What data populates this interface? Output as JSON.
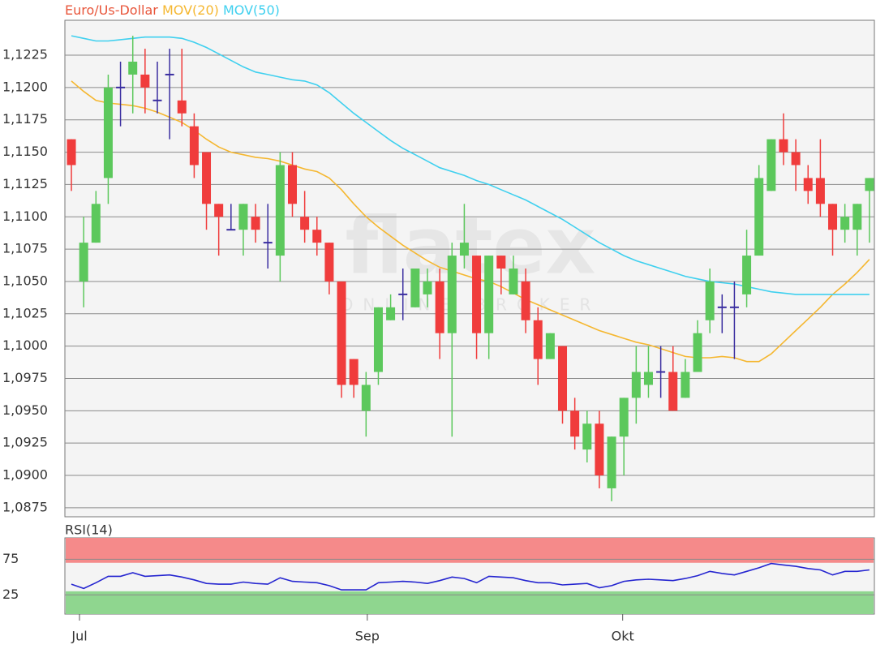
{
  "watermark": {
    "text": "flatex",
    "subtext": "ONLINE BROKER"
  },
  "chart_data": [
    {
      "type": "candlestick",
      "title": "Euro/Us-Dollar",
      "title_color": "#e8553a",
      "up_color": "#5cc85c",
      "down_color": "#f03c3c",
      "doji_color": "#3a2ea0",
      "categories": [
        null,
        null,
        null,
        null,
        null,
        null,
        null,
        null,
        null,
        null,
        null,
        null,
        null,
        null,
        null,
        null,
        null,
        null,
        null,
        null,
        null,
        null,
        null,
        null,
        null,
        null,
        null,
        null,
        null,
        null,
        null,
        null,
        null,
        null,
        null,
        null,
        null,
        null,
        null,
        null,
        null,
        null,
        null,
        null,
        null,
        null,
        null,
        null,
        null,
        null,
        null,
        null,
        null,
        null,
        null,
        null,
        null,
        null,
        null,
        null,
        null,
        null,
        null,
        null,
        null,
        null
      ],
      "open": [
        1.116,
        1.105,
        1.108,
        1.113,
        1.12,
        1.121,
        1.121,
        1.119,
        1.121,
        1.119,
        1.117,
        1.115,
        1.111,
        1.109,
        1.109,
        1.11,
        1.108,
        1.107,
        1.114,
        1.11,
        1.109,
        1.108,
        1.105,
        1.099,
        1.095,
        1.098,
        1.102,
        1.104,
        1.103,
        1.104,
        1.105,
        1.101,
        1.107,
        1.107,
        1.101,
        1.107,
        1.104,
        1.105,
        1.102,
        1.099,
        1.1,
        1.095,
        1.092,
        1.094,
        1.089,
        1.093,
        1.096,
        1.097,
        1.098,
        1.098,
        1.096,
        1.098,
        1.102,
        1.103,
        1.103,
        1.104,
        1.107,
        1.112,
        1.116,
        1.115,
        1.113,
        1.113,
        1.111,
        1.109,
        1.109,
        1.112
      ],
      "high": [
        1.116,
        1.11,
        1.112,
        1.121,
        1.122,
        1.124,
        1.123,
        1.122,
        1.123,
        1.123,
        1.118,
        1.115,
        1.111,
        1.111,
        1.111,
        1.111,
        1.111,
        1.115,
        1.115,
        1.112,
        1.11,
        1.108,
        1.105,
        1.099,
        1.098,
        1.103,
        1.104,
        1.106,
        1.106,
        1.106,
        1.106,
        1.108,
        1.111,
        1.107,
        1.107,
        1.107,
        1.107,
        1.106,
        1.103,
        1.101,
        1.1,
        1.096,
        1.095,
        1.095,
        1.093,
        1.096,
        1.1,
        1.1,
        1.1,
        1.1,
        1.099,
        1.102,
        1.106,
        1.104,
        1.105,
        1.109,
        1.114,
        1.116,
        1.118,
        1.116,
        1.114,
        1.116,
        1.111,
        1.111,
        1.111,
        1.113
      ],
      "low": [
        1.112,
        1.103,
        1.108,
        1.111,
        1.117,
        1.118,
        1.118,
        1.118,
        1.116,
        1.117,
        1.113,
        1.109,
        1.107,
        1.109,
        1.107,
        1.108,
        1.106,
        1.105,
        1.11,
        1.108,
        1.107,
        1.104,
        1.096,
        1.096,
        1.093,
        1.097,
        1.102,
        1.102,
        1.103,
        1.103,
        1.099,
        1.093,
        1.106,
        1.099,
        1.099,
        1.104,
        1.104,
        1.101,
        1.097,
        1.099,
        1.094,
        1.092,
        1.091,
        1.089,
        1.088,
        1.09,
        1.094,
        1.096,
        1.096,
        1.095,
        1.096,
        1.098,
        1.101,
        1.101,
        1.099,
        1.103,
        1.107,
        1.112,
        1.114,
        1.112,
        1.111,
        1.11,
        1.107,
        1.108,
        1.107,
        1.108
      ],
      "close": [
        1.114,
        1.108,
        1.111,
        1.12,
        1.12,
        1.122,
        1.12,
        1.119,
        1.121,
        1.118,
        1.114,
        1.111,
        1.11,
        1.109,
        1.111,
        1.109,
        1.108,
        1.114,
        1.111,
        1.109,
        1.108,
        1.105,
        1.097,
        1.097,
        1.097,
        1.103,
        1.103,
        1.104,
        1.106,
        1.105,
        1.101,
        1.107,
        1.108,
        1.101,
        1.107,
        1.106,
        1.106,
        1.102,
        1.099,
        1.101,
        1.095,
        1.093,
        1.094,
        1.09,
        1.093,
        1.096,
        1.098,
        1.098,
        1.098,
        1.095,
        1.098,
        1.101,
        1.105,
        1.103,
        1.103,
        1.107,
        1.113,
        1.116,
        1.115,
        1.114,
        1.112,
        1.111,
        1.109,
        1.11,
        1.111,
        1.113
      ],
      "series": [
        {
          "name": "MOV(20)",
          "color": "#f5b730",
          "values": [
            1.1205,
            1.1197,
            1.119,
            1.1188,
            1.1187,
            1.1186,
            1.1184,
            1.1181,
            1.1177,
            1.1173,
            1.1167,
            1.116,
            1.1154,
            1.115,
            1.1148,
            1.1146,
            1.1145,
            1.1143,
            1.114,
            1.1137,
            1.1135,
            1.113,
            1.1121,
            1.111,
            1.11,
            1.1092,
            1.1085,
            1.1078,
            1.1072,
            1.1066,
            1.1061,
            1.1058,
            1.1055,
            1.1052,
            1.105,
            1.1046,
            1.1041,
            1.1036,
            1.1032,
            1.1028,
            1.1024,
            1.102,
            1.1016,
            1.1012,
            1.1009,
            1.1006,
            1.1003,
            1.1001,
            1.0998,
            1.0995,
            1.0992,
            1.0991,
            1.0991,
            1.0992,
            1.0991,
            1.0988,
            1.0988,
            1.0994,
            1.1003,
            1.1012,
            1.1021,
            1.103,
            1.104,
            1.1048,
            1.1057,
            1.1067
          ]
        },
        {
          "name": "MOV(50)",
          "color": "#3fd0ef",
          "values": [
            1.124,
            1.1238,
            1.1236,
            1.1236,
            1.1237,
            1.1238,
            1.1239,
            1.1239,
            1.1239,
            1.1238,
            1.1235,
            1.1231,
            1.1226,
            1.1221,
            1.1216,
            1.1212,
            1.121,
            1.1208,
            1.1206,
            1.1205,
            1.1202,
            1.1196,
            1.1188,
            1.118,
            1.1173,
            1.1166,
            1.1159,
            1.1153,
            1.1148,
            1.1143,
            1.1138,
            1.1135,
            1.1132,
            1.1128,
            1.1125,
            1.1121,
            1.1117,
            1.1113,
            1.1108,
            1.1103,
            1.1098,
            1.1092,
            1.1086,
            1.108,
            1.1075,
            1.107,
            1.1066,
            1.1063,
            1.106,
            1.1057,
            1.1054,
            1.1052,
            1.105,
            1.1049,
            1.1048,
            1.1046,
            1.1044,
            1.1042,
            1.1041,
            1.104,
            1.104,
            1.104,
            1.104,
            1.104,
            1.104,
            1.104
          ]
        }
      ],
      "xlim": [
        -0.53,
        65.4
      ],
      "ylim": [
        1.0868,
        1.1252
      ],
      "yticks": [
        {
          "value": 1.0875,
          "label": "1,0875"
        },
        {
          "value": 1.09,
          "label": "1,0900"
        },
        {
          "value": 1.0925,
          "label": "1,0925"
        },
        {
          "value": 1.095,
          "label": "1,0950"
        },
        {
          "value": 1.0975,
          "label": "1,0975"
        },
        {
          "value": 1.1,
          "label": "1,1000"
        },
        {
          "value": 1.1025,
          "label": "1,1025"
        },
        {
          "value": 1.105,
          "label": "1,1050"
        },
        {
          "value": 1.1075,
          "label": "1,1075"
        },
        {
          "value": 1.11,
          "label": "1,1100"
        },
        {
          "value": 1.1125,
          "label": "1,1125"
        },
        {
          "value": 1.115,
          "label": "1,1150"
        },
        {
          "value": 1.1175,
          "label": "1,1175"
        },
        {
          "value": 1.12,
          "label": "1,1200"
        },
        {
          "value": 1.1225,
          "label": "1,1225"
        }
      ],
      "grid": true
    },
    {
      "type": "line",
      "title": "RSI(14)",
      "title_color": "#1a1aff",
      "categories": [
        null,
        null,
        null,
        null,
        null,
        null,
        null,
        null,
        null,
        null,
        null,
        null,
        null,
        null,
        null,
        null,
        null,
        null,
        null,
        null,
        null,
        null,
        null,
        null,
        null,
        null,
        null,
        null,
        null,
        null,
        null,
        null,
        null,
        null,
        null,
        null,
        null,
        null,
        null,
        null,
        null,
        null,
        null,
        null,
        null,
        null,
        null,
        null,
        null,
        null,
        null,
        null,
        null,
        null,
        null,
        null,
        null,
        null,
        null,
        null,
        null,
        null,
        null,
        null,
        null,
        null
      ],
      "series": [
        {
          "color": "#2525d0",
          "values": [
            40,
            34,
            42,
            51,
            51,
            56,
            51,
            52,
            53,
            50,
            46,
            41,
            40,
            40,
            43,
            41,
            40,
            49,
            44,
            43,
            42,
            38,
            32,
            32,
            32,
            42,
            43,
            44,
            43,
            41,
            45,
            50,
            48,
            42,
            51,
            50,
            49,
            45,
            42,
            42,
            39,
            40,
            41,
            35,
            38,
            44,
            46,
            47,
            46,
            45,
            48,
            52,
            58,
            55,
            53,
            58,
            63,
            69,
            67,
            65,
            62,
            60,
            53,
            58,
            58,
            60
          ]
        }
      ],
      "bands": [
        {
          "from": 70,
          "to": 105,
          "color": "#f58a8a"
        },
        {
          "from": -2,
          "to": 30,
          "color": "#8fd68f"
        }
      ],
      "xlim": [
        -0.53,
        65.4
      ],
      "xticks": [
        {
          "value": 0.66,
          "label": "Jul"
        },
        {
          "value": 24.1,
          "label": "Sep"
        },
        {
          "value": 44.9,
          "label": "Okt"
        }
      ],
      "ylim": [
        -2,
        105
      ],
      "yticks": [
        25,
        75
      ],
      "grid": true
    }
  ]
}
